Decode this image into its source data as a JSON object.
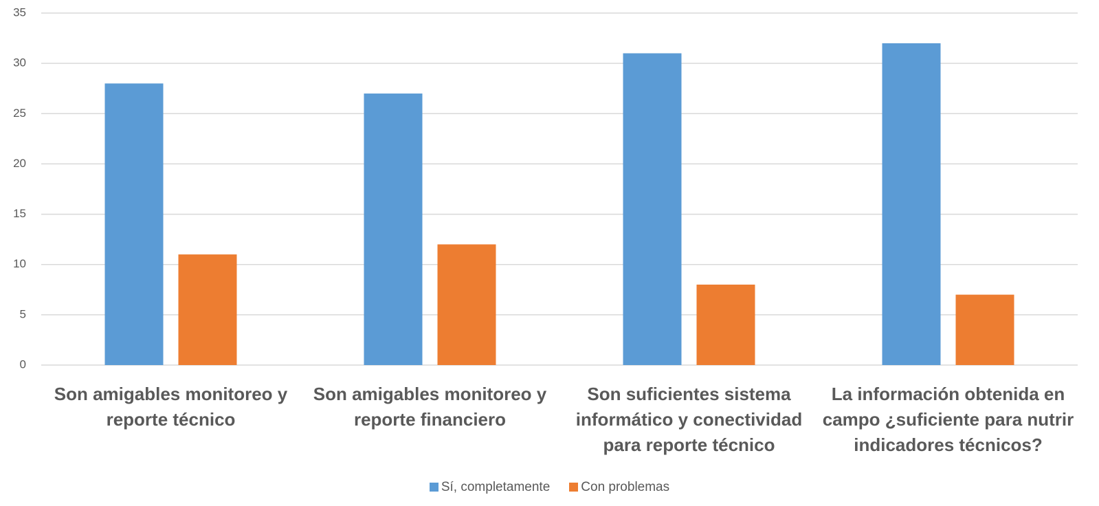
{
  "chart_data": {
    "type": "bar",
    "categories": [
      "Son amigables monitoreo y reporte técnico",
      "Son amigables monitoreo y reporte financiero",
      "Son suficientes sistema informático y conectividad para reporte técnico",
      "La información obtenida en campo ¿suficiente para nutrir indicadores técnicos?"
    ],
    "series": [
      {
        "name": "Sí, completamente",
        "color": "#5b9bd5",
        "values": [
          28,
          27,
          31,
          32
        ]
      },
      {
        "name": "Con problemas",
        "color": "#ed7d31",
        "values": [
          11,
          12,
          8,
          7
        ]
      }
    ],
    "ylim": [
      0,
      35
    ],
    "yticks": [
      0,
      5,
      10,
      15,
      20,
      25,
      30,
      35
    ],
    "grid": true,
    "legend": "bottom"
  }
}
